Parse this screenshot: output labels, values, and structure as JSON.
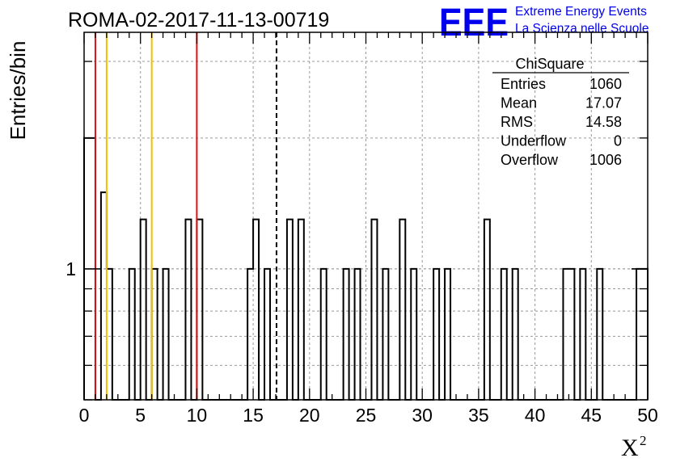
{
  "chart_data": {
    "type": "bar",
    "title": "ROMA-02-2017-11-13-00719",
    "xlabel": "X",
    "xlabel_sup": "2",
    "ylabel": "Entries/bin",
    "xlim": [
      0,
      50
    ],
    "ylim": [
      0.5,
      3.5
    ],
    "yscale": "log",
    "grid": true,
    "bin_width": 0.5,
    "x_ticks": [
      0,
      5,
      10,
      15,
      20,
      25,
      30,
      35,
      40,
      45,
      50
    ],
    "y_ticks": [
      1
    ],
    "bins": [
      {
        "x": 0.0,
        "value": 2
      },
      {
        "x": 0.5,
        "value": 2
      },
      {
        "x": 1.5,
        "value": 1.5
      },
      {
        "x": 2.0,
        "value": 1
      },
      {
        "x": 4.0,
        "value": 1
      },
      {
        "x": 5.0,
        "value": 1.3
      },
      {
        "x": 6.0,
        "value": 1
      },
      {
        "x": 7.0,
        "value": 1
      },
      {
        "x": 9.0,
        "value": 1.3
      },
      {
        "x": 10.0,
        "value": 1.3
      },
      {
        "x": 14.5,
        "value": 1
      },
      {
        "x": 15.0,
        "value": 1.3
      },
      {
        "x": 16.0,
        "value": 1
      },
      {
        "x": 18.0,
        "value": 1.3
      },
      {
        "x": 19.0,
        "value": 1.3
      },
      {
        "x": 21.0,
        "value": 1
      },
      {
        "x": 23.0,
        "value": 1
      },
      {
        "x": 24.0,
        "value": 1
      },
      {
        "x": 25.5,
        "value": 1.3
      },
      {
        "x": 26.5,
        "value": 1
      },
      {
        "x": 28.0,
        "value": 1.3
      },
      {
        "x": 29.0,
        "value": 1
      },
      {
        "x": 31.0,
        "value": 1
      },
      {
        "x": 32.0,
        "value": 1
      },
      {
        "x": 35.5,
        "value": 1.3
      },
      {
        "x": 37.0,
        "value": 1
      },
      {
        "x": 38.0,
        "value": 1
      },
      {
        "x": 42.5,
        "value": 1
      },
      {
        "x": 43.0,
        "value": 1
      },
      {
        "x": 44.0,
        "value": 1
      },
      {
        "x": 45.5,
        "value": 1
      },
      {
        "x": 49.0,
        "value": 1
      },
      {
        "x": 49.5,
        "value": 1
      }
    ],
    "reference_lines": [
      {
        "x": 1.0,
        "color": "#dd1111",
        "style": "solid"
      },
      {
        "x": 2.0,
        "color": "#f0c000",
        "style": "solid"
      },
      {
        "x": 6.0,
        "color": "#f0c000",
        "style": "solid"
      },
      {
        "x": 10.0,
        "color": "#dd1111",
        "style": "solid"
      },
      {
        "x": 17.07,
        "color": "#000000",
        "style": "dashed"
      }
    ],
    "stats_box": {
      "title": "ChiSquare",
      "rows": [
        {
          "label": "Entries",
          "value": "1060"
        },
        {
          "label": "Mean",
          "value": "17.07"
        },
        {
          "label": "RMS",
          "value": "14.58"
        },
        {
          "label": "Underflow",
          "value": "0"
        },
        {
          "label": "Overflow",
          "value": "1006"
        }
      ]
    }
  },
  "logo": {
    "mark": "EEE",
    "line1": "Extreme Energy Events",
    "line2": "La Scienza nelle Scuole",
    "color": "#0000ee"
  }
}
